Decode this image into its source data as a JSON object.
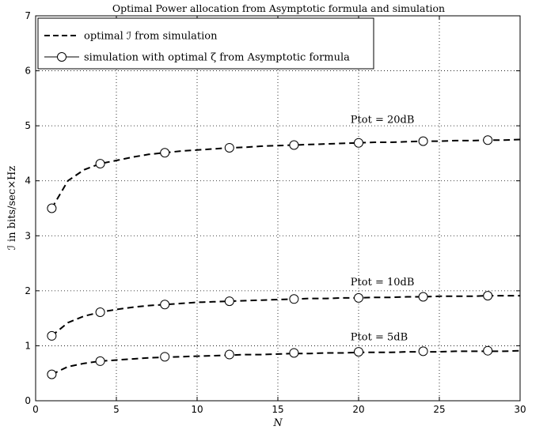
{
  "chart_data": {
    "type": "line",
    "title": "Optimal Power allocation from Asymptotic formula and simulation",
    "xlabel": "N",
    "ylabel": "ℐ in bits/sec×Hz",
    "xlim": [
      0,
      30
    ],
    "ylim": [
      0,
      7
    ],
    "x_ticks": [
      "0",
      "5",
      "10",
      "15",
      "20",
      "25",
      "30"
    ],
    "y_ticks": [
      "0",
      "1",
      "2",
      "3",
      "4",
      "5",
      "6",
      "7"
    ],
    "grid": true,
    "legend_position": "top-left",
    "legend": [
      {
        "label": "optimal ℐ from simulation",
        "style": "dashed"
      },
      {
        "label": "simulation with optimal ζ from Asymptotic formula",
        "style": "solid-circle"
      }
    ],
    "annotations": [
      {
        "text": "Ptot = 20dB",
        "x": 19.5,
        "y": 5.05
      },
      {
        "text": "Ptot = 10dB",
        "x": 19.5,
        "y": 2.1
      },
      {
        "text": "Ptot = 5dB",
        "x": 19.5,
        "y": 1.1
      }
    ],
    "series": [
      {
        "name": "optimal ℐ from simulation",
        "group": "Ptot = 20dB",
        "style": "dashed",
        "x": [
          1,
          2,
          3,
          4,
          5,
          6,
          7,
          8,
          9,
          10,
          11,
          12,
          13,
          14,
          15,
          16,
          17,
          18,
          19,
          20,
          21,
          22,
          23,
          24,
          25,
          26,
          27,
          28,
          29,
          30
        ],
        "y": [
          3.5,
          4.0,
          4.2,
          4.31,
          4.37,
          4.43,
          4.48,
          4.51,
          4.54,
          4.56,
          4.58,
          4.6,
          4.61,
          4.63,
          4.64,
          4.65,
          4.66,
          4.67,
          4.68,
          4.69,
          4.7,
          4.7,
          4.71,
          4.72,
          4.72,
          4.73,
          4.73,
          4.74,
          4.74,
          4.75
        ]
      },
      {
        "name": "simulation with optimal ζ from Asymptotic formula",
        "group": "Ptot = 20dB",
        "style": "circle",
        "x": [
          1,
          4,
          8,
          12,
          16,
          20,
          24,
          28
        ],
        "y": [
          3.5,
          4.31,
          4.51,
          4.6,
          4.65,
          4.69,
          4.72,
          4.74
        ]
      },
      {
        "name": "optimal ℐ from simulation",
        "group": "Ptot = 10dB",
        "style": "dashed",
        "x": [
          1,
          2,
          3,
          4,
          5,
          6,
          7,
          8,
          9,
          10,
          11,
          12,
          13,
          14,
          15,
          16,
          17,
          18,
          19,
          20,
          21,
          22,
          23,
          24,
          25,
          26,
          27,
          28,
          29,
          30
        ],
        "y": [
          1.18,
          1.42,
          1.54,
          1.61,
          1.66,
          1.7,
          1.73,
          1.75,
          1.77,
          1.79,
          1.8,
          1.81,
          1.82,
          1.83,
          1.84,
          1.85,
          1.86,
          1.86,
          1.87,
          1.87,
          1.88,
          1.88,
          1.89,
          1.89,
          1.9,
          1.9,
          1.9,
          1.91,
          1.91,
          1.91
        ]
      },
      {
        "name": "simulation with optimal ζ from Asymptotic formula",
        "group": "Ptot = 10dB",
        "style": "circle",
        "x": [
          1,
          4,
          8,
          12,
          16,
          20,
          24,
          28
        ],
        "y": [
          1.18,
          1.61,
          1.75,
          1.81,
          1.85,
          1.87,
          1.89,
          1.91
        ]
      },
      {
        "name": "optimal ℐ from simulation",
        "group": "Ptot = 5dB",
        "style": "dashed",
        "x": [
          1,
          2,
          3,
          4,
          5,
          6,
          7,
          8,
          9,
          10,
          11,
          12,
          13,
          14,
          15,
          16,
          17,
          18,
          19,
          20,
          21,
          22,
          23,
          24,
          25,
          26,
          27,
          28,
          29,
          30
        ],
        "y": [
          0.48,
          0.62,
          0.68,
          0.72,
          0.74,
          0.76,
          0.78,
          0.79,
          0.8,
          0.81,
          0.82,
          0.83,
          0.84,
          0.84,
          0.85,
          0.86,
          0.86,
          0.87,
          0.87,
          0.88,
          0.88,
          0.88,
          0.89,
          0.89,
          0.89,
          0.9,
          0.9,
          0.9,
          0.9,
          0.91
        ]
      },
      {
        "name": "simulation with optimal ζ from Asymptotic formula",
        "group": "Ptot = 5dB",
        "style": "circle",
        "x": [
          1,
          4,
          8,
          12,
          16,
          20,
          24,
          28
        ],
        "y": [
          0.48,
          0.72,
          0.8,
          0.84,
          0.87,
          0.89,
          0.9,
          0.91
        ]
      }
    ]
  }
}
